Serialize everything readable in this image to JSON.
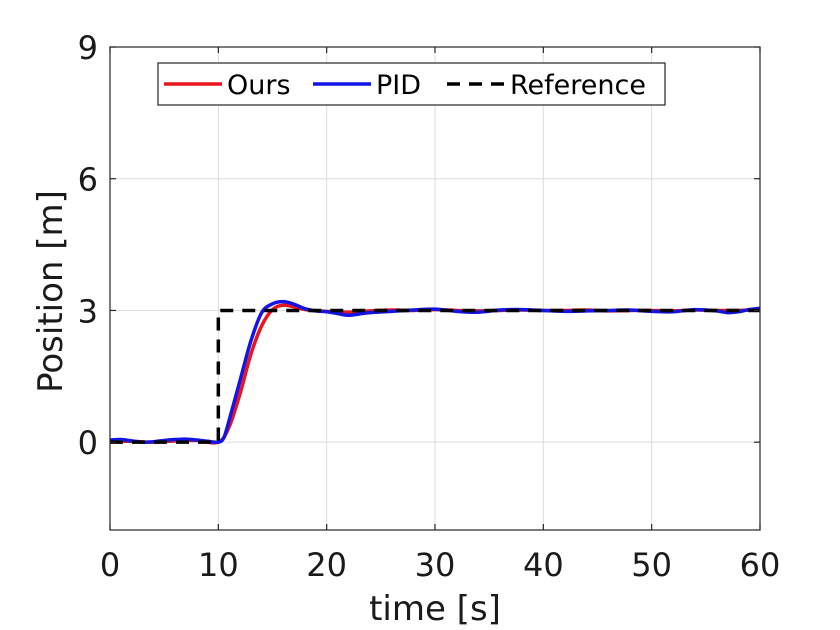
{
  "chart_data": {
    "type": "line",
    "title": "",
    "xlabel": "time [s]",
    "ylabel": "Position [m]",
    "xlim": [
      0,
      60
    ],
    "ylim": [
      -2,
      9
    ],
    "xticks": [
      0,
      10,
      20,
      30,
      40,
      50,
      60
    ],
    "yticks": [
      0,
      3,
      6,
      9
    ],
    "grid": true,
    "legend_position": "top",
    "legend_orientation": "horizontal",
    "series": [
      {
        "name": "Ours",
        "color": "#e8141e",
        "style": "solid",
        "x": [
          0,
          2,
          4,
          6,
          8,
          10,
          11,
          12,
          13,
          14,
          15,
          16,
          17,
          18,
          19,
          20,
          22,
          24,
          26,
          28,
          30,
          32,
          34,
          36,
          38,
          40,
          42,
          44,
          46,
          48,
          50,
          52,
          54,
          56,
          58,
          60
        ],
        "y": [
          0.03,
          0.02,
          0.0,
          0.03,
          0.04,
          0.0,
          0.35,
          1.1,
          2.0,
          2.65,
          3.02,
          3.12,
          3.08,
          3.02,
          2.99,
          2.98,
          2.96,
          2.99,
          3.01,
          3.0,
          3.02,
          3.0,
          2.99,
          3.0,
          3.01,
          3.0,
          3.0,
          3.01,
          2.99,
          3.0,
          3.0,
          2.99,
          3.01,
          3.0,
          3.0,
          3.02
        ]
      },
      {
        "name": "PID",
        "color": "#1414e6",
        "style": "solid",
        "x": [
          0,
          1,
          2,
          3,
          4,
          5,
          6,
          7,
          8,
          9,
          10,
          10.5,
          11,
          12,
          13,
          14,
          15,
          16,
          17,
          18,
          19,
          20,
          21,
          22,
          23,
          24,
          26,
          28,
          30,
          32,
          34,
          36,
          38,
          40,
          42,
          44,
          46,
          48,
          50,
          52,
          54,
          56,
          57,
          58,
          59,
          60
        ],
        "y": [
          0.05,
          0.06,
          0.03,
          0.0,
          0.01,
          0.04,
          0.06,
          0.07,
          0.05,
          0.02,
          0.0,
          0.1,
          0.5,
          1.4,
          2.3,
          2.95,
          3.15,
          3.2,
          3.14,
          3.04,
          2.99,
          2.97,
          2.93,
          2.89,
          2.92,
          2.95,
          2.98,
          3.01,
          3.03,
          2.98,
          2.96,
          3.01,
          3.02,
          3.0,
          2.98,
          2.99,
          3.0,
          3.01,
          2.98,
          2.97,
          3.02,
          2.99,
          2.95,
          2.97,
          3.02,
          3.05
        ]
      },
      {
        "name": "Reference",
        "color": "#000000",
        "style": "dashed",
        "x": [
          0,
          10,
          10,
          60
        ],
        "y": [
          0,
          0,
          3,
          3
        ]
      }
    ]
  }
}
